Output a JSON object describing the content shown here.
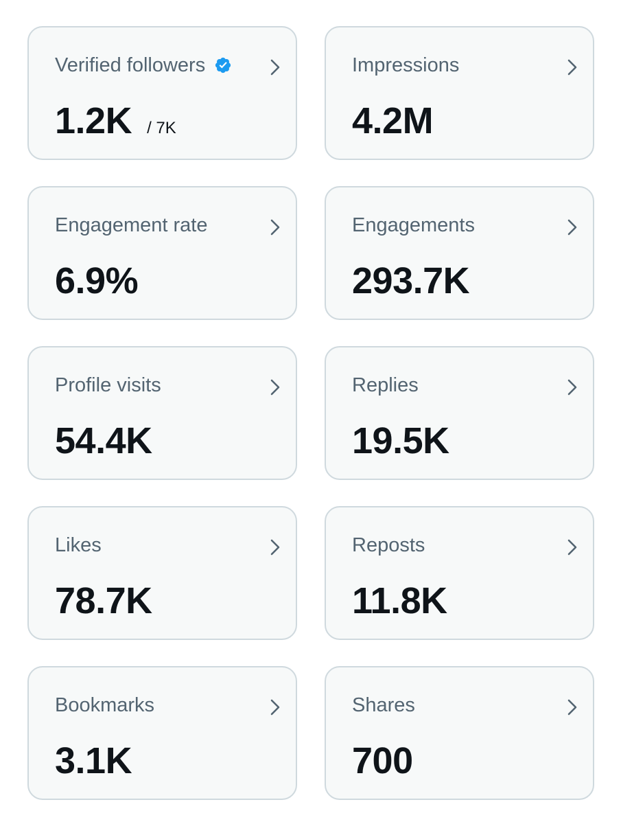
{
  "colors": {
    "card_background": "#f7f9f9",
    "card_border": "#cfd9de",
    "label_text": "#536471",
    "value_text": "#0f1419",
    "verified_badge": "#1d9bf0"
  },
  "metrics": [
    {
      "label": "Verified followers",
      "value": "1.2K",
      "secondary": "/ 7K",
      "icon": "verified-badge-icon"
    },
    {
      "label": "Impressions",
      "value": "4.2M"
    },
    {
      "label": "Engagement rate",
      "value": "6.9%"
    },
    {
      "label": "Engagements",
      "value": "293.7K"
    },
    {
      "label": "Profile visits",
      "value": "54.4K"
    },
    {
      "label": "Replies",
      "value": "19.5K"
    },
    {
      "label": "Likes",
      "value": "78.7K"
    },
    {
      "label": "Reposts",
      "value": "11.8K"
    },
    {
      "label": "Bookmarks",
      "value": "3.1K"
    },
    {
      "label": "Shares",
      "value": "700"
    }
  ]
}
